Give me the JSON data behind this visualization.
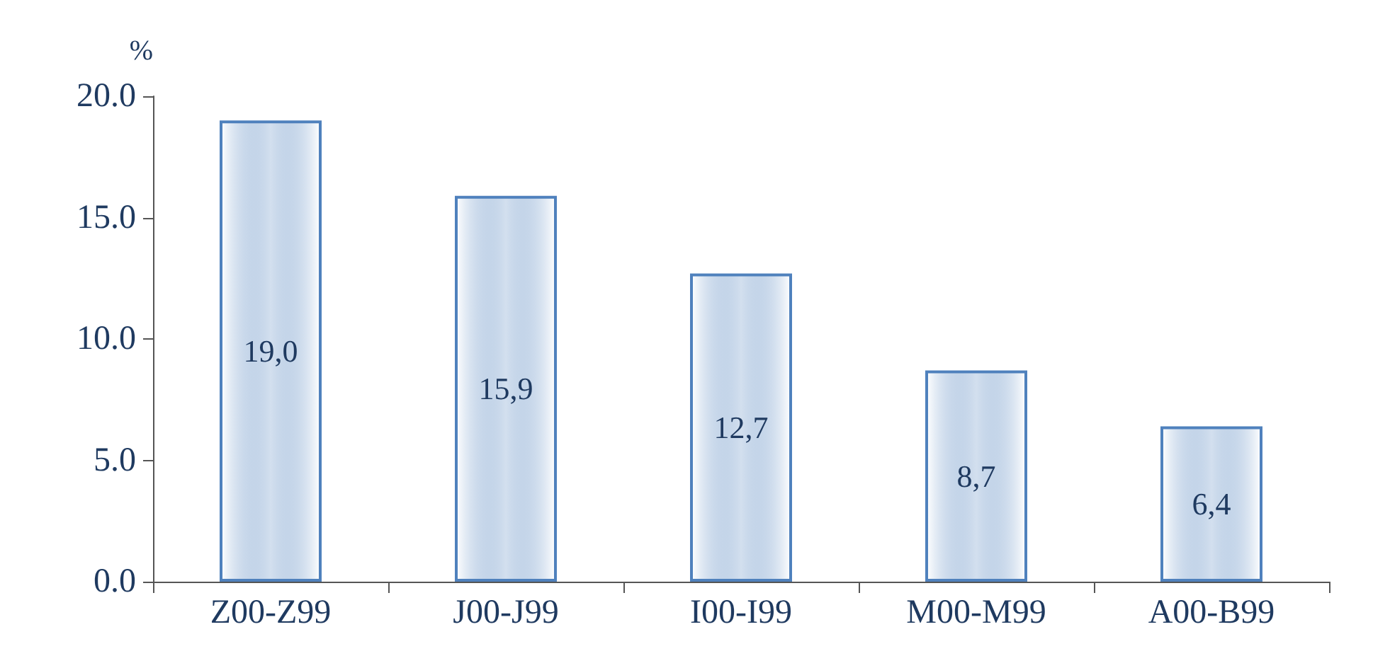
{
  "chart_data": {
    "type": "bar",
    "ylabel": "%",
    "categories": [
      "Z00-Z99",
      "J00-J99",
      "I00-I99",
      "M00-M99",
      "A00-B99"
    ],
    "values": [
      19.0,
      15.9,
      12.7,
      8.7,
      6.4
    ],
    "value_labels": [
      "19,0",
      "15,9",
      "12,7",
      "8,7",
      "6,4"
    ],
    "color": "#4f81bd",
    "ylim": [
      0,
      20
    ],
    "yticks": [
      {
        "value": 0,
        "label": "0.0"
      },
      {
        "value": 5,
        "label": "5.0"
      },
      {
        "value": 10,
        "label": "10.0"
      },
      {
        "value": 15,
        "label": "15.0"
      },
      {
        "value": 20,
        "label": "20.0"
      }
    ],
    "grid": false
  }
}
